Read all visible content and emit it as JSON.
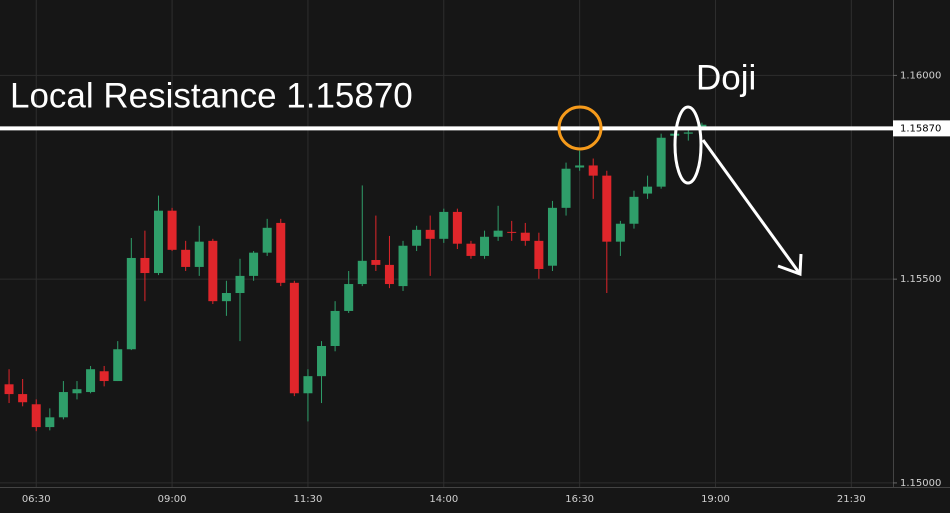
{
  "chart_data": {
    "type": "candlestick",
    "x": [
      "06:00",
      "06:15",
      "06:30",
      "06:45",
      "07:00",
      "07:15",
      "07:30",
      "07:45",
      "08:00",
      "08:15",
      "08:30",
      "08:45",
      "09:00",
      "09:15",
      "09:30",
      "09:45",
      "10:00",
      "10:15",
      "10:30",
      "10:45",
      "11:00",
      "11:15",
      "11:30",
      "11:45",
      "12:00",
      "12:15",
      "12:30",
      "12:45",
      "13:00",
      "13:15",
      "13:30",
      "13:45",
      "14:00",
      "14:15",
      "14:30",
      "14:45",
      "15:00",
      "15:15",
      "15:30",
      "15:45",
      "16:00",
      "16:15",
      "16:30",
      "16:45",
      "17:00",
      "17:15",
      "17:30",
      "17:45",
      "18:00",
      "18:15",
      "18:30",
      "18:45"
    ],
    "open": [
      1.15242,
      1.15218,
      1.15193,
      1.15137,
      1.15161,
      1.1522,
      1.15223,
      1.15274,
      1.1525,
      1.15328,
      1.15552,
      1.15515,
      1.15668,
      1.15572,
      1.1553,
      1.15594,
      1.15446,
      1.15466,
      1.15508,
      1.15565,
      1.15638,
      1.15491,
      1.1522,
      1.15262,
      1.15336,
      1.15422,
      1.15488,
      1.15547,
      1.15535,
      1.15483,
      1.15582,
      1.15621,
      1.15599,
      1.15665,
      1.15587,
      1.15557,
      1.15604,
      1.15616,
      1.15614,
      1.15594,
      1.15533,
      1.15675,
      1.15774,
      1.15779,
      1.15754,
      1.15592,
      1.15636,
      1.1571,
      1.15727,
      1.15852,
      1.15857,
      1.15872
    ],
    "high": [
      1.15279,
      1.15255,
      1.15205,
      1.15183,
      1.1525,
      1.1525,
      1.15287,
      1.15287,
      1.15348,
      1.15601,
      1.15619,
      1.15705,
      1.15675,
      1.15594,
      1.15631,
      1.15599,
      1.15496,
      1.1555,
      1.15569,
      1.15648,
      1.15648,
      1.15496,
      1.15279,
      1.15348,
      1.15446,
      1.1552,
      1.1573,
      1.15656,
      1.15606,
      1.15594,
      1.15631,
      1.15656,
      1.15673,
      1.15673,
      1.15594,
      1.15619,
      1.1568,
      1.15643,
      1.15638,
      1.15614,
      1.15692,
      1.15786,
      1.15815,
      1.15796,
      1.15766,
      1.15643,
      1.15717,
      1.15754,
      1.15857,
      1.1587,
      1.15872,
      1.15884
    ],
    "low": [
      1.15196,
      1.15188,
      1.15127,
      1.15129,
      1.15156,
      1.15205,
      1.1522,
      1.15237,
      1.1525,
      1.15326,
      1.15446,
      1.1551,
      1.15569,
      1.1552,
      1.15508,
      1.15439,
      1.1541,
      1.15348,
      1.15496,
      1.15557,
      1.15483,
      1.15213,
      1.15151,
      1.15196,
      1.15323,
      1.15417,
      1.15483,
      1.1552,
      1.15478,
      1.15471,
      1.15569,
      1.15508,
      1.15589,
      1.15574,
      1.1555,
      1.1555,
      1.15594,
      1.15594,
      1.15582,
      1.15501,
      1.1552,
      1.15656,
      1.15766,
      1.15697,
      1.15466,
      1.15557,
      1.15624,
      1.15697,
      1.15722,
      1.1584,
      1.1584,
      1.15865
    ],
    "close": [
      1.15218,
      1.15198,
      1.15137,
      1.15161,
      1.15223,
      1.1523,
      1.15279,
      1.1525,
      1.15328,
      1.15552,
      1.15515,
      1.15668,
      1.15572,
      1.1553,
      1.15592,
      1.15446,
      1.15466,
      1.15508,
      1.15565,
      1.15626,
      1.15491,
      1.1522,
      1.15262,
      1.15336,
      1.15422,
      1.15488,
      1.15545,
      1.15535,
      1.15488,
      1.15582,
      1.15621,
      1.15599,
      1.15665,
      1.15587,
      1.15557,
      1.15604,
      1.15619,
      1.15614,
      1.15594,
      1.15525,
      1.15675,
      1.15771,
      1.15779,
      1.15754,
      1.15592,
      1.15636,
      1.15702,
      1.15727,
      1.15847,
      1.15857,
      1.1586,
      1.15879
    ],
    "up_color": "#2f9e6a",
    "down_color": "#e0262b",
    "xlim": [
      "05:50",
      "22:16"
    ],
    "xticks": [
      "06:30",
      "09:00",
      "11:30",
      "14:00",
      "16:30",
      "19:00",
      "21:30"
    ],
    "ylim": [
      1.1499,
      1.16185
    ],
    "yticks": [
      {
        "value": 1.15,
        "label": "1.15000"
      },
      {
        "value": 1.155,
        "label": "1.15500"
      },
      {
        "value": 1.16,
        "label": "1.16000"
      }
    ],
    "grid": true,
    "price_line": {
      "value": 1.1587,
      "label": "1.15870"
    },
    "annotations": [
      {
        "text": "Local Resistance 1.15870"
      },
      {
        "text": "Doji"
      }
    ]
  }
}
